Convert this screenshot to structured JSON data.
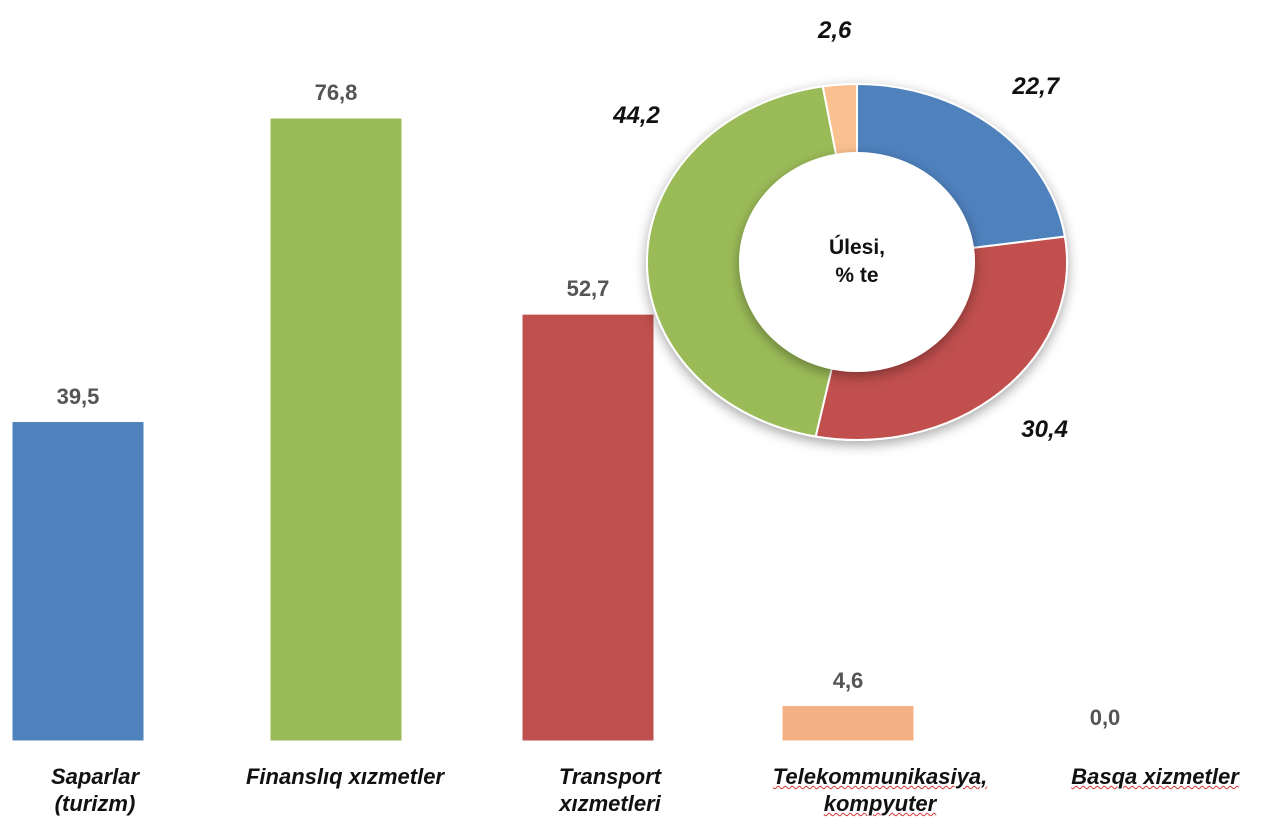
{
  "chart_data": [
    {
      "type": "bar",
      "categories": [
        "Saparlar\n(turizm)",
        "Finanslıq xızmetler",
        "Transport\nxızmetleri",
        "Telekommunikasiya,\nkompyuter",
        "Basqa xizmetler"
      ],
      "values": [
        39.5,
        76.8,
        52.7,
        4.6,
        0.0
      ],
      "value_labels": [
        "39,5",
        "76,8",
        "52,7",
        "4,6",
        "0,0"
      ],
      "colors": [
        "#4f81bd",
        "#9bbb59",
        "#c0504d",
        "#f4b183",
        "#a6a6a6"
      ]
    },
    {
      "type": "pie",
      "title": "Úlesi,\n% te",
      "values": [
        22.7,
        30.4,
        44.2,
        2.6
      ],
      "value_labels": [
        "22,7",
        "30,4",
        "44,2",
        "2,6"
      ],
      "colors": [
        "#4f81bd",
        "#c0504d",
        "#9bbb59",
        "#fac090"
      ]
    }
  ]
}
